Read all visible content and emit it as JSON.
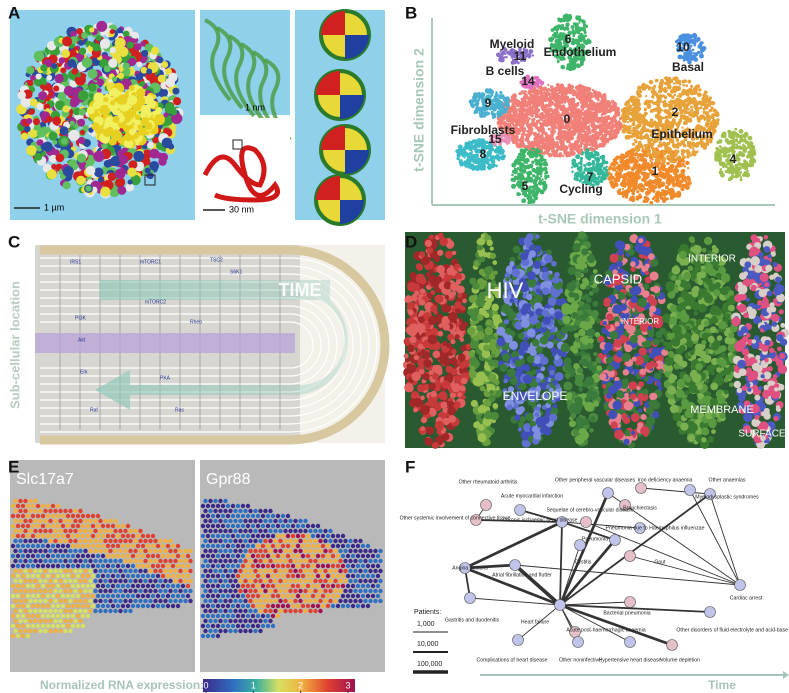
{
  "panel_a": {
    "letter": "A",
    "scale_main": "1 µm",
    "scale_zoom": "1 nm",
    "scale_chain": "30 nm"
  },
  "panel_b": {
    "letter": "B",
    "x_axis": "t-SNE dimension 1",
    "y_axis": "t-SNE dimension 2",
    "cluster_ids": [
      "0",
      "1",
      "2",
      "4",
      "5",
      "6",
      "7",
      "8",
      "9",
      "10",
      "11",
      "14",
      "15"
    ],
    "cell_types": [
      "Myeloid",
      "Endothelium",
      "Basal",
      "B cells",
      "Fibroblasts",
      "Epithelium",
      "Cycling"
    ]
  },
  "panel_c": {
    "letter": "C",
    "y_axis": "Sub-cellular location",
    "arrow": "TIME",
    "labels": [
      "mTORC1",
      "mTORC2",
      "PI3K",
      "Akt",
      "TSC2",
      "Rheb",
      "PKA",
      "Erk",
      "Raf",
      "Ras",
      "IRS1",
      "S6K1"
    ]
  },
  "panel_d": {
    "letter": "D",
    "labels": [
      "HIV",
      "CAPSID",
      "INTERIOR",
      "INTERIOR",
      "ENVELOPE",
      "MEMBRANE",
      "SURFACE"
    ]
  },
  "panel_e": {
    "letter": "E",
    "genes": [
      "Slc17a7",
      "Gpr88"
    ],
    "colorbar_title": "Normalized RNA expression:",
    "colorbar_ticks": [
      0,
      1,
      2,
      3
    ]
  },
  "panel_f": {
    "letter": "F",
    "legend_title": "Patients:",
    "legend_sizes": [
      "1,000",
      "10,000",
      "100,000"
    ],
    "axis": "Time",
    "diseases": [
      "Other rheumatoid arthritis",
      "Acute myocardial infarction",
      "Other peripheral vascular diseases",
      "Iron deficiency anaemia",
      "Other anaemias",
      "Myelodysplastic syndromes",
      "Sequelae of cerebro-vascular disease",
      "Bronchiectasis",
      "Chronic ischaemic heart disease",
      "Pneumonia due to Haemophilus influenzae",
      "Pneumonia",
      "Other systemic involvement of connective tissue",
      "Cystitis",
      "Gout",
      "Angina pectoris",
      "Atrial fibrillation and flutter",
      "Cardiac arrest",
      "Gastritis and duodenitis",
      "Heart failure",
      "Bacterial pneumonia",
      "Acute post-haemorrhagic anaemia",
      "Other disorders of fluid electrolyte and acid-base balance",
      "Complications of heart disease",
      "Other noninfective",
      "Hypertensive heart disease",
      "Volume depletion"
    ]
  }
}
